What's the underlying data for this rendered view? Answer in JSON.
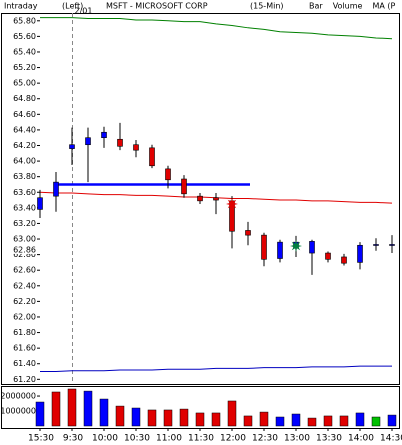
{
  "chart_data": {
    "type": "candlestick",
    "left_label": "Intraday",
    "axis_note": "(Left)",
    "title": "MSFT - MICROSOFT CORP",
    "interval": "(15-Min)",
    "legend": [
      {
        "name": "Bar",
        "color": "#000000"
      },
      {
        "name": "Volume",
        "color": "#008000"
      },
      {
        "name": "MA (P",
        "color": "#e00000"
      }
    ],
    "categories": [
      "15:30",
      null,
      "9:30",
      null,
      "10:00",
      null,
      "10:30",
      null,
      "11:00",
      null,
      "11:30",
      null,
      "12:00",
      null,
      "12:30",
      null,
      "13:00",
      null,
      "13:30",
      null,
      "14:00",
      null,
      "14:30"
    ],
    "open": [
      63.38,
      63.55,
      64.16,
      64.21,
      64.3,
      64.28,
      64.21,
      64.17,
      63.9,
      63.77,
      63.55,
      63.53,
      63.49,
      63.11,
      63.05,
      62.75,
      62.89,
      62.82,
      62.82,
      62.77,
      62.7,
      62.92,
      62.92
    ],
    "high": [
      63.63,
      63.86,
      64.43,
      64.43,
      64.44,
      64.49,
      64.27,
      64.21,
      63.94,
      63.82,
      63.59,
      63.59,
      63.55,
      63.22,
      63.08,
      62.99,
      63.04,
      62.99,
      62.84,
      62.81,
      62.96,
      63.01,
      63.05
    ],
    "low": [
      63.27,
      63.35,
      63.95,
      63.73,
      64.17,
      64.14,
      64.05,
      63.91,
      63.65,
      63.53,
      63.45,
      63.32,
      62.88,
      62.92,
      62.65,
      62.7,
      62.77,
      62.54,
      62.7,
      62.66,
      62.61,
      62.85,
      62.82
    ],
    "close": [
      63.53,
      63.73,
      64.21,
      64.3,
      64.37,
      64.19,
      64.14,
      63.94,
      63.76,
      63.58,
      63.49,
      63.5,
      63.1,
      63.05,
      62.74,
      62.96,
      62.96,
      62.97,
      62.74,
      62.69,
      62.92,
      62.93,
      62.93
    ],
    "up_color": "#0000ff",
    "down_color": "#e00000",
    "lines": [
      {
        "color": "#008000",
        "values": [
          65.84,
          65.84,
          65.84,
          65.83,
          65.83,
          65.83,
          65.81,
          65.81,
          65.8,
          65.79,
          65.79,
          65.76,
          65.74,
          65.71,
          65.69,
          65.66,
          65.65,
          65.64,
          65.62,
          65.61,
          65.6,
          65.58,
          65.57
        ]
      },
      {
        "color": "#e00000",
        "values": [
          63.6,
          63.59,
          63.59,
          63.58,
          63.57,
          63.57,
          63.56,
          63.56,
          63.55,
          63.54,
          63.54,
          63.53,
          63.52,
          63.52,
          63.51,
          63.5,
          63.5,
          63.49,
          63.49,
          63.48,
          63.47,
          63.47,
          63.46
        ]
      },
      {
        "color": "#0000c0",
        "values": [
          61.3,
          61.3,
          61.31,
          61.31,
          61.31,
          61.32,
          61.32,
          61.32,
          61.33,
          61.33,
          61.33,
          61.34,
          61.34,
          61.34,
          61.35,
          61.35,
          61.35,
          61.36,
          61.36,
          61.36,
          61.37,
          61.37,
          61.37
        ]
      }
    ],
    "ylim": [
      61.14,
      65.9
    ],
    "yticks": [
      {
        "value": 65.8,
        "label": "65.80"
      },
      {
        "value": 65.6,
        "label": "65.60"
      },
      {
        "value": 65.4,
        "label": "65.40"
      },
      {
        "value": 65.2,
        "label": "65.20"
      },
      {
        "value": 65.0,
        "label": "65.00"
      },
      {
        "value": 64.8,
        "label": "64.80"
      },
      {
        "value": 64.6,
        "label": "64.60"
      },
      {
        "value": 64.4,
        "label": "64.40"
      },
      {
        "value": 64.2,
        "label": "64.20"
      },
      {
        "value": 64.0,
        "label": "64.00"
      },
      {
        "value": 63.8,
        "label": "63.80"
      },
      {
        "value": 63.6,
        "label": "63.60"
      },
      {
        "value": 63.4,
        "label": "63.40"
      },
      {
        "value": 63.2,
        "label": "63.20"
      },
      {
        "value": 63.0,
        "label": "63.00"
      },
      {
        "value": 62.8,
        "label": "62.80"
      },
      {
        "value": 62.6,
        "label": "62.60"
      },
      {
        "value": 62.4,
        "label": "62.40"
      },
      {
        "value": 62.2,
        "label": "62.20"
      },
      {
        "value": 62.0,
        "label": "62.00"
      },
      {
        "value": 61.8,
        "label": "61.80"
      },
      {
        "value": 61.6,
        "label": "61.60"
      },
      {
        "value": 61.4,
        "label": "61.40"
      },
      {
        "value": 61.2,
        "label": "61.20"
      }
    ],
    "last_price": {
      "value": 62.86,
      "label": "62.86"
    },
    "hline": {
      "value": 63.7,
      "color": "#0000ff"
    },
    "day_break": {
      "x": "9:30",
      "label": "2/01"
    },
    "markers": [
      {
        "x": "12:00",
        "value": 63.45,
        "color": "#e00000"
      },
      {
        "x": "13:00",
        "value": 62.91,
        "color": "#008040"
      }
    ],
    "volume": {
      "values": [
        1600000,
        2270000,
        2470000,
        2330000,
        1800000,
        1330000,
        1200000,
        1070000,
        1070000,
        1130000,
        870000,
        870000,
        1670000,
        670000,
        930000,
        600000,
        800000,
        530000,
        670000,
        670000,
        870000,
        600000,
        730000
      ],
      "colors": [
        "#0000ff",
        "#e00000",
        "#e00000",
        "#0000ff",
        "#0000ff",
        "#e00000",
        "#0000ff",
        "#e00000",
        "#e00000",
        "#e00000",
        "#e00000",
        "#e00000",
        "#e00000",
        "#e00000",
        "#e00000",
        "#0000ff",
        "#0000ff",
        "#e00000",
        "#e00000",
        "#e00000",
        "#0000ff",
        "#00c000",
        "#0000ff"
      ],
      "ylim": [
        0,
        2670000
      ],
      "yticks": [
        1000000,
        2000000
      ]
    }
  }
}
